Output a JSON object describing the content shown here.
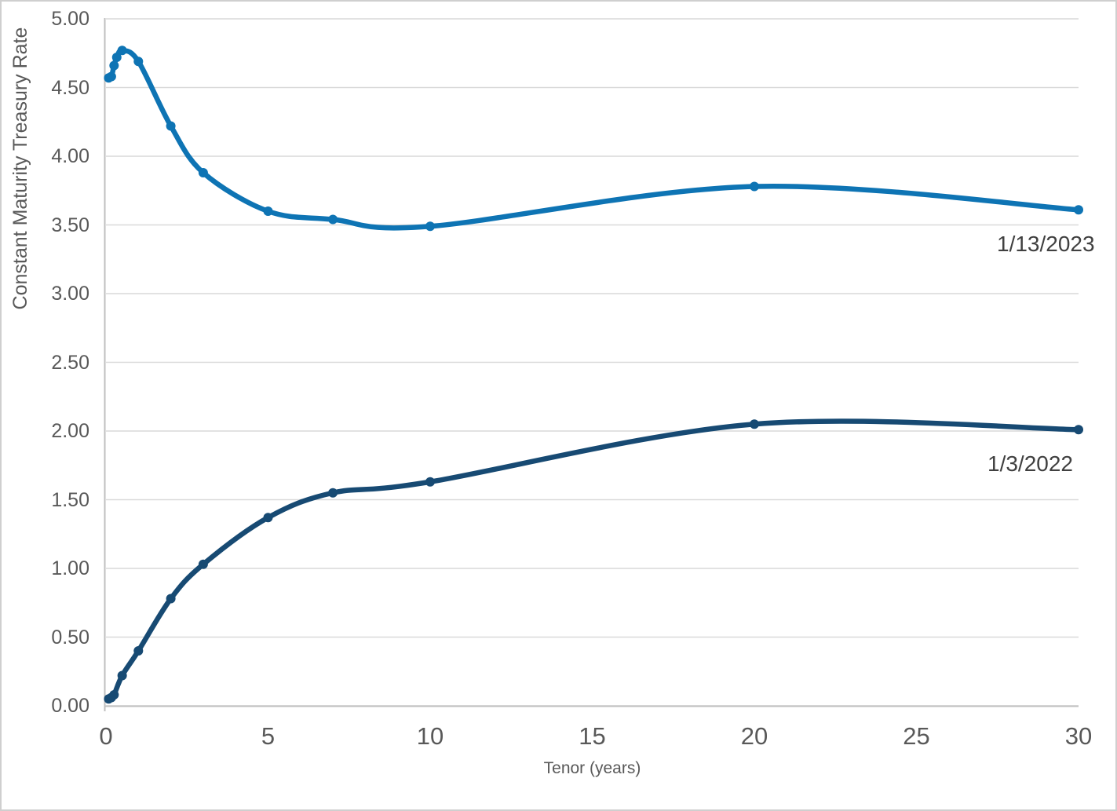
{
  "chart_data": {
    "type": "line",
    "line_style": "smooth",
    "markers": true,
    "title": "",
    "xlabel": "Tenor (years)",
    "ylabel": "Constant Maturity Treasury Rate",
    "xlim": [
      0,
      30
    ],
    "ylim": [
      0,
      5
    ],
    "x_tick_values": [
      0,
      5,
      10,
      15,
      20,
      25,
      30
    ],
    "x_tick_labels": [
      "0",
      "5",
      "10",
      "15",
      "20",
      "25",
      "30"
    ],
    "y_tick_values": [
      0,
      0.5,
      1,
      1.5,
      2,
      2.5,
      3,
      3.5,
      4,
      4.5,
      5
    ],
    "y_tick_labels": [
      "0.00",
      "0.50",
      "1.00",
      "1.50",
      "2.00",
      "2.50",
      "3.00",
      "3.50",
      "4.00",
      "4.50",
      "5.00"
    ],
    "grid": "horizontal-only",
    "legend": "direct-labels-on-chart",
    "series": [
      {
        "name": "1/13/2023",
        "color": "#0e74b4",
        "tenor_years": [
          0.083,
          0.167,
          0.25,
          0.333,
          0.5,
          1,
          2,
          3,
          5,
          7,
          10,
          20,
          30
        ],
        "values": [
          4.57,
          4.58,
          4.66,
          4.72,
          4.77,
          4.69,
          4.22,
          3.88,
          3.6,
          3.54,
          3.49,
          3.78,
          3.61
        ]
      },
      {
        "name": "1/3/2022",
        "color": "#174a73",
        "tenor_years": [
          0.083,
          0.167,
          0.25,
          0.5,
          1,
          2,
          3,
          5,
          7,
          10,
          20,
          30
        ],
        "values": [
          0.05,
          0.06,
          0.08,
          0.22,
          0.4,
          0.78,
          1.03,
          1.37,
          1.55,
          1.63,
          2.05,
          2.01
        ]
      }
    ],
    "colors": {
      "series_2023": "#0e74b4",
      "series_2022": "#174a73",
      "gridline": "#d9d9d9",
      "axis_line": "#bfbfbf",
      "tick_label": "#595959",
      "series_label_text": "#404040",
      "figure_border": "#cfcfcf",
      "background": "#ffffff"
    }
  }
}
